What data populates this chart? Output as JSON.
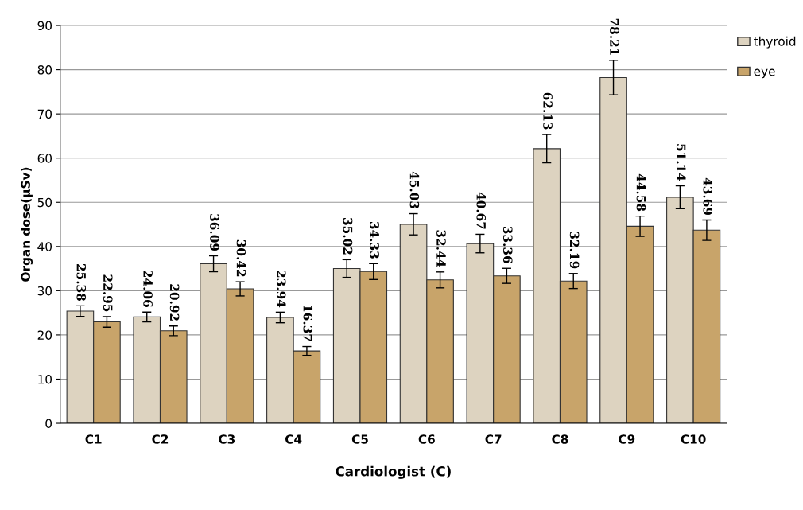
{
  "chart_data": {
    "type": "bar",
    "xlabel": "Cardiologist (C)",
    "ylabel": "Organ dose(μSv)",
    "categories": [
      "C1",
      "C2",
      "C3",
      "C4",
      "C5",
      "C6",
      "C7",
      "C8",
      "C9",
      "C10"
    ],
    "series": [
      {
        "name": "thyroid",
        "color": "#ddd3c0",
        "values": [
          25.38,
          24.06,
          36.09,
          23.94,
          35.02,
          45.03,
          40.67,
          62.13,
          78.21,
          51.14
        ],
        "errors": [
          1.2,
          1.1,
          1.8,
          1.2,
          2.0,
          2.4,
          2.1,
          3.2,
          3.9,
          2.6
        ]
      },
      {
        "name": "eye",
        "color": "#c8a46a",
        "values": [
          22.95,
          20.92,
          30.42,
          16.37,
          34.33,
          32.44,
          33.36,
          32.19,
          44.58,
          43.69
        ],
        "errors": [
          1.2,
          1.1,
          1.6,
          1.0,
          1.8,
          1.8,
          1.7,
          1.7,
          2.3,
          2.3
        ]
      }
    ],
    "ylim": [
      0,
      90
    ],
    "yticks": [
      0,
      10,
      20,
      30,
      40,
      50,
      60,
      70,
      80,
      90
    ],
    "grid": "y",
    "legend": "top right",
    "data_labels": true
  }
}
